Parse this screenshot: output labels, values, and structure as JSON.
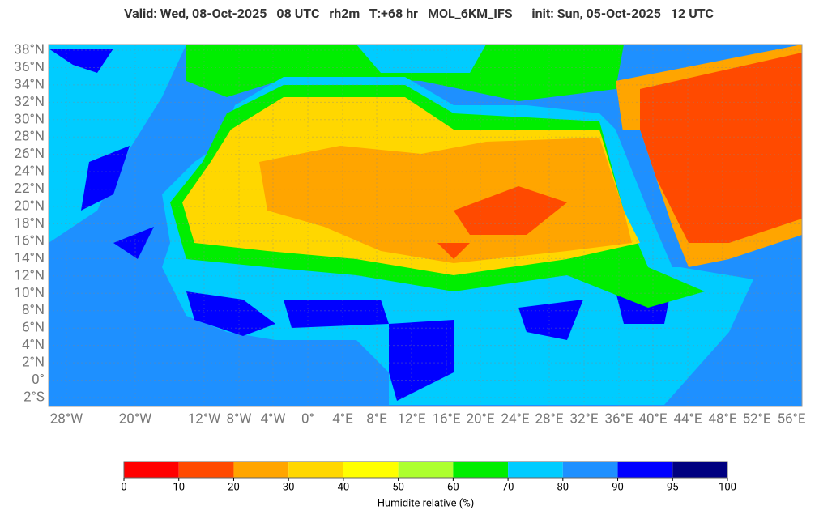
{
  "header": {
    "title": "Valid: Wed, 08-Oct-2025   08 UTC   rh2m   T:+68 hr   MOL_6KM_IFS      init: Sun, 05-Oct-2025   12 UTC"
  },
  "map": {
    "lat_labels": [
      "38°N",
      "36°N",
      "34°N",
      "32°N",
      "30°N",
      "28°N",
      "26°N",
      "24°N",
      "22°N",
      "20°N",
      "18°N",
      "16°N",
      "14°N",
      "12°N",
      "10°N",
      "8°N",
      "6°N",
      "4°N",
      "2°N",
      "0°",
      "2°S"
    ],
    "lon_labels": [
      "28°W",
      "20°W",
      "12°W",
      "8°W",
      "4°W",
      "0°",
      "4°E",
      "8°E",
      "12°E",
      "16°E",
      "20°E",
      "24°E",
      "28°E",
      "32°E",
      "36°E",
      "40°E",
      "44°E",
      "48°E",
      "52°E",
      "56°E"
    ]
  },
  "colorbar": {
    "ticks": [
      0,
      10,
      20,
      30,
      40,
      50,
      60,
      70,
      80,
      90,
      95,
      100
    ],
    "colors": [
      "#ff0000",
      "#ff4a00",
      "#ffa500",
      "#ffd700",
      "#ffff00",
      "#adff2f",
      "#00ee00",
      "#00ccff",
      "#1e90ff",
      "#0000ff",
      "#000080"
    ],
    "label": "Humidite relative (%)"
  }
}
